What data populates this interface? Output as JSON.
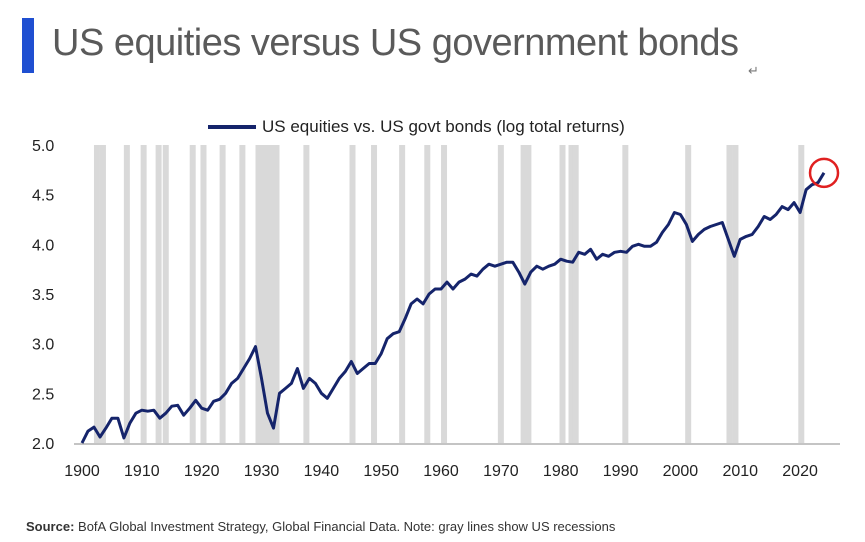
{
  "header": {
    "title": "US equities versus US government bonds"
  },
  "return_symbol": "↵",
  "source": {
    "label": "Source:",
    "text": " BofA Global Investment Strategy, Global Financial Data. Note: gray lines show US recessions"
  },
  "colors": {
    "accent_bar": "#1f4fd1",
    "line": "#15246b",
    "recession": "#d9d9d9",
    "highlight": "#e02020"
  },
  "chart_data": {
    "type": "line",
    "title": "",
    "xlabel": "",
    "ylabel": "",
    "xlim": [
      1900,
      2025
    ],
    "ylim": [
      2.0,
      5.0
    ],
    "x_ticks": [
      1900,
      1910,
      1920,
      1930,
      1940,
      1950,
      1960,
      1970,
      1980,
      1990,
      2000,
      2010,
      2020
    ],
    "y_ticks": [
      "2.0",
      "2.5",
      "3.0",
      "3.5",
      "4.0",
      "4.5",
      "5.0"
    ],
    "legend_position": "top-center",
    "series": [
      {
        "name": "US equities vs. US govt bonds (log total returns)",
        "x": [
          1900,
          1901,
          1902,
          1903,
          1904,
          1905,
          1906,
          1907,
          1908,
          1909,
          1910,
          1911,
          1912,
          1913,
          1914,
          1915,
          1916,
          1917,
          1918,
          1919,
          1920,
          1921,
          1922,
          1923,
          1924,
          1925,
          1926,
          1927,
          1928,
          1929,
          1930,
          1931,
          1932,
          1933,
          1934,
          1935,
          1936,
          1937,
          1938,
          1939,
          1940,
          1941,
          1942,
          1943,
          1944,
          1945,
          1946,
          1947,
          1948,
          1949,
          1950,
          1951,
          1952,
          1953,
          1954,
          1955,
          1956,
          1957,
          1958,
          1959,
          1960,
          1961,
          1962,
          1963,
          1964,
          1965,
          1966,
          1967,
          1968,
          1969,
          1970,
          1971,
          1972,
          1973,
          1974,
          1975,
          1976,
          1977,
          1978,
          1979,
          1980,
          1981,
          1982,
          1983,
          1984,
          1985,
          1986,
          1987,
          1988,
          1989,
          1990,
          1991,
          1992,
          1993,
          1994,
          1995,
          1996,
          1997,
          1998,
          1999,
          2000,
          2001,
          2002,
          2003,
          2004,
          2005,
          2006,
          2007,
          2008,
          2009,
          2010,
          2011,
          2012,
          2013,
          2014,
          2015,
          2016,
          2017,
          2018,
          2019,
          2020,
          2021,
          2022,
          2023,
          2024
        ],
        "y": [
          2.0,
          2.12,
          2.16,
          2.06,
          2.15,
          2.25,
          2.25,
          2.05,
          2.2,
          2.3,
          2.33,
          2.32,
          2.33,
          2.25,
          2.3,
          2.37,
          2.38,
          2.28,
          2.35,
          2.43,
          2.35,
          2.33,
          2.42,
          2.44,
          2.5,
          2.6,
          2.65,
          2.75,
          2.85,
          2.97,
          2.65,
          2.3,
          2.15,
          2.5,
          2.55,
          2.6,
          2.75,
          2.55,
          2.65,
          2.6,
          2.5,
          2.45,
          2.55,
          2.65,
          2.72,
          2.82,
          2.7,
          2.75,
          2.8,
          2.8,
          2.9,
          3.05,
          3.1,
          3.12,
          3.25,
          3.4,
          3.45,
          3.4,
          3.5,
          3.55,
          3.55,
          3.62,
          3.55,
          3.62,
          3.65,
          3.7,
          3.68,
          3.75,
          3.8,
          3.78,
          3.8,
          3.82,
          3.82,
          3.72,
          3.6,
          3.72,
          3.78,
          3.75,
          3.78,
          3.8,
          3.85,
          3.83,
          3.82,
          3.92,
          3.9,
          3.95,
          3.85,
          3.9,
          3.88,
          3.92,
          3.93,
          3.92,
          3.98,
          4.0,
          3.98,
          3.98,
          4.02,
          4.12,
          4.2,
          4.32,
          4.3,
          4.2,
          4.03,
          4.1,
          4.15,
          4.18,
          4.2,
          4.22,
          4.05,
          3.88,
          4.05,
          4.08,
          4.1,
          4.18,
          4.28,
          4.25,
          4.3,
          4.38,
          4.35,
          4.42,
          4.32,
          4.55,
          4.6,
          4.62,
          4.72
        ]
      }
    ],
    "recessions": [
      1902.5,
      1903.5,
      1907.5,
      1910.3,
      1912.8,
      1914,
      1918.5,
      1920.3,
      1923.5,
      1926.8,
      1929.5,
      1930.5,
      1931.5,
      1932.5,
      1937.5,
      1945.2,
      1948.8,
      1953.5,
      1957.7,
      1960.5,
      1970,
      1973.8,
      1974.6,
      1980.3,
      1981.8,
      1982.5,
      1990.8,
      2001.3,
      2008.2,
      2009.2,
      2020.2
    ],
    "highlight_point": [
      2024,
      4.72
    ]
  }
}
